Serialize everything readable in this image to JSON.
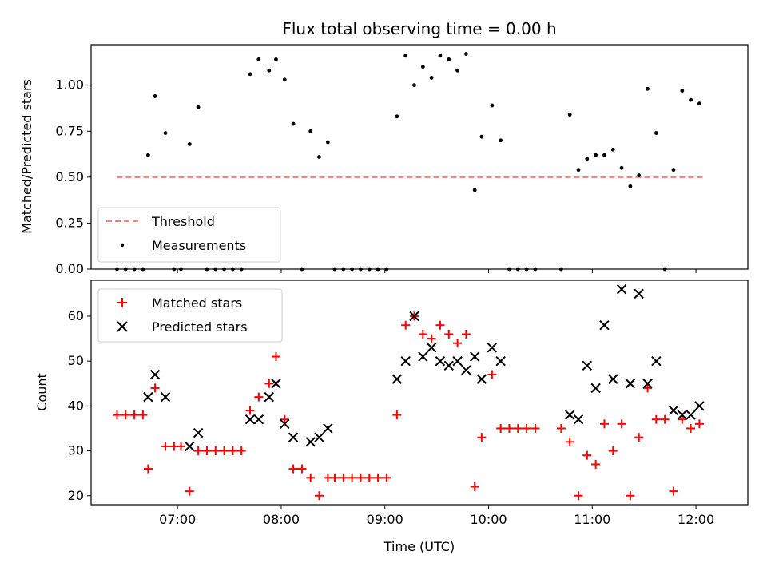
{
  "chart_data": [
    {
      "type": "scatter",
      "title": "Flux total observing time = 0.00 h",
      "xlabel": "",
      "ylabel": "Matched/Predicted stars",
      "x_ticks": [
        "07:00",
        "08:00",
        "09:00",
        "10:00",
        "11:00",
        "12:00"
      ],
      "x_tick_labels_visible": false,
      "xlim": [
        "06:10",
        "12:30"
      ],
      "ylim": [
        0,
        1.22
      ],
      "y_ticks": [
        "0.00",
        "0.25",
        "0.50",
        "0.75",
        "1.00"
      ],
      "legend": {
        "placement": "lower-left",
        "entries": [
          "Threshold",
          "Measurements"
        ]
      },
      "threshold": {
        "name": "Threshold",
        "value": 0.5,
        "x_range": [
          "06:25",
          "12:05"
        ],
        "color": "#f08080",
        "style": "dashed"
      },
      "series": [
        {
          "name": "Measurements",
          "marker": "dot",
          "color": "#000000",
          "points": [
            [
              "06:25",
              0.0
            ],
            [
              "06:30",
              0.0
            ],
            [
              "06:35",
              0.0
            ],
            [
              "06:40",
              0.0
            ],
            [
              "06:43",
              0.62
            ],
            [
              "06:47",
              0.94
            ],
            [
              "06:53",
              0.74
            ],
            [
              "06:58",
              0.0
            ],
            [
              "07:02",
              0.0
            ],
            [
              "07:07",
              0.68
            ],
            [
              "07:12",
              0.88
            ],
            [
              "07:17",
              0.0
            ],
            [
              "07:22",
              0.0
            ],
            [
              "07:27",
              0.0
            ],
            [
              "07:32",
              0.0
            ],
            [
              "07:37",
              0.0
            ],
            [
              "07:42",
              1.06
            ],
            [
              "07:47",
              1.14
            ],
            [
              "07:53",
              1.08
            ],
            [
              "07:57",
              1.14
            ],
            [
              "08:02",
              1.03
            ],
            [
              "08:07",
              0.79
            ],
            [
              "08:12",
              0.0
            ],
            [
              "08:17",
              0.75
            ],
            [
              "08:22",
              0.61
            ],
            [
              "08:27",
              0.69
            ],
            [
              "08:31",
              0.0
            ],
            [
              "08:36",
              0.0
            ],
            [
              "08:41",
              0.0
            ],
            [
              "08:46",
              0.0
            ],
            [
              "08:51",
              0.0
            ],
            [
              "08:56",
              0.0
            ],
            [
              "09:01",
              0.0
            ],
            [
              "09:07",
              0.83
            ],
            [
              "09:12",
              1.16
            ],
            [
              "09:17",
              1.0
            ],
            [
              "09:22",
              1.1
            ],
            [
              "09:27",
              1.04
            ],
            [
              "09:32",
              1.16
            ],
            [
              "09:37",
              1.14
            ],
            [
              "09:42",
              1.08
            ],
            [
              "09:47",
              1.17
            ],
            [
              "09:52",
              0.43
            ],
            [
              "09:56",
              0.72
            ],
            [
              "10:02",
              0.89
            ],
            [
              "10:07",
              0.7
            ],
            [
              "10:12",
              0.0
            ],
            [
              "10:17",
              0.0
            ],
            [
              "10:22",
              0.0
            ],
            [
              "10:27",
              0.0
            ],
            [
              "10:42",
              0.0
            ],
            [
              "10:47",
              0.84
            ],
            [
              "10:52",
              0.54
            ],
            [
              "10:57",
              0.6
            ],
            [
              "11:02",
              0.62
            ],
            [
              "11:07",
              0.62
            ],
            [
              "11:12",
              0.65
            ],
            [
              "11:17",
              0.55
            ],
            [
              "11:22",
              0.45
            ],
            [
              "11:27",
              0.51
            ],
            [
              "11:32",
              0.98
            ],
            [
              "11:37",
              0.74
            ],
            [
              "11:42",
              0.0
            ],
            [
              "11:47",
              0.54
            ],
            [
              "11:52",
              0.97
            ],
            [
              "11:57",
              0.92
            ],
            [
              "12:02",
              0.9
            ]
          ]
        }
      ]
    },
    {
      "type": "scatter",
      "title": "",
      "xlabel": "Time (UTC)",
      "ylabel": "Count",
      "x_ticks": [
        "07:00",
        "08:00",
        "09:00",
        "10:00",
        "11:00",
        "12:00"
      ],
      "xlim": [
        "06:10",
        "12:30"
      ],
      "ylim": [
        18,
        68
      ],
      "y_ticks": [
        "20",
        "30",
        "40",
        "50",
        "60"
      ],
      "legend": {
        "placement": "upper-left",
        "entries": [
          "Matched stars",
          "Predicted stars"
        ]
      },
      "series": [
        {
          "name": "Matched stars",
          "marker": "plus",
          "color": "#ff0000",
          "points": [
            [
              "06:25",
              38
            ],
            [
              "06:30",
              38
            ],
            [
              "06:35",
              38
            ],
            [
              "06:40",
              38
            ],
            [
              "06:43",
              26
            ],
            [
              "06:47",
              44
            ],
            [
              "06:53",
              31
            ],
            [
              "06:58",
              31
            ],
            [
              "07:02",
              31
            ],
            [
              "07:07",
              21
            ],
            [
              "07:12",
              30
            ],
            [
              "07:17",
              30
            ],
            [
              "07:22",
              30
            ],
            [
              "07:27",
              30
            ],
            [
              "07:32",
              30
            ],
            [
              "07:37",
              30
            ],
            [
              "07:42",
              39
            ],
            [
              "07:47",
              42
            ],
            [
              "07:53",
              45
            ],
            [
              "07:57",
              51
            ],
            [
              "08:02",
              37
            ],
            [
              "08:07",
              26
            ],
            [
              "08:12",
              26
            ],
            [
              "08:17",
              24
            ],
            [
              "08:22",
              20
            ],
            [
              "08:27",
              24
            ],
            [
              "08:31",
              24
            ],
            [
              "08:36",
              24
            ],
            [
              "08:41",
              24
            ],
            [
              "08:46",
              24
            ],
            [
              "08:51",
              24
            ],
            [
              "08:56",
              24
            ],
            [
              "09:01",
              24
            ],
            [
              "09:07",
              38
            ],
            [
              "09:12",
              58
            ],
            [
              "09:17",
              60
            ],
            [
              "09:22",
              56
            ],
            [
              "09:27",
              55
            ],
            [
              "09:32",
              58
            ],
            [
              "09:37",
              56
            ],
            [
              "09:42",
              54
            ],
            [
              "09:47",
              56
            ],
            [
              "09:52",
              22
            ],
            [
              "09:56",
              33
            ],
            [
              "10:02",
              47
            ],
            [
              "10:07",
              35
            ],
            [
              "10:12",
              35
            ],
            [
              "10:17",
              35
            ],
            [
              "10:22",
              35
            ],
            [
              "10:27",
              35
            ],
            [
              "10:42",
              35
            ],
            [
              "10:47",
              32
            ],
            [
              "10:52",
              20
            ],
            [
              "10:57",
              29
            ],
            [
              "11:02",
              27
            ],
            [
              "11:07",
              36
            ],
            [
              "11:12",
              30
            ],
            [
              "11:17",
              36
            ],
            [
              "11:22",
              20
            ],
            [
              "11:27",
              33
            ],
            [
              "11:32",
              44
            ],
            [
              "11:37",
              37
            ],
            [
              "11:42",
              37
            ],
            [
              "11:47",
              21
            ],
            [
              "11:52",
              37
            ],
            [
              "11:57",
              35
            ],
            [
              "12:02",
              36
            ]
          ]
        },
        {
          "name": "Predicted stars",
          "marker": "x",
          "color": "#000000",
          "points": [
            [
              "06:43",
              42
            ],
            [
              "06:47",
              47
            ],
            [
              "06:53",
              42
            ],
            [
              "07:07",
              31
            ],
            [
              "07:12",
              34
            ],
            [
              "07:42",
              37
            ],
            [
              "07:47",
              37
            ],
            [
              "07:53",
              42
            ],
            [
              "07:57",
              45
            ],
            [
              "08:02",
              36
            ],
            [
              "08:07",
              33
            ],
            [
              "08:17",
              32
            ],
            [
              "08:22",
              33
            ],
            [
              "08:27",
              35
            ],
            [
              "09:07",
              46
            ],
            [
              "09:12",
              50
            ],
            [
              "09:17",
              60
            ],
            [
              "09:22",
              51
            ],
            [
              "09:27",
              53
            ],
            [
              "09:32",
              50
            ],
            [
              "09:37",
              49
            ],
            [
              "09:42",
              50
            ],
            [
              "09:47",
              48
            ],
            [
              "09:52",
              51
            ],
            [
              "09:56",
              46
            ],
            [
              "10:02",
              53
            ],
            [
              "10:07",
              50
            ],
            [
              "10:47",
              38
            ],
            [
              "10:52",
              37
            ],
            [
              "10:57",
              49
            ],
            [
              "11:02",
              44
            ],
            [
              "11:07",
              58
            ],
            [
              "11:12",
              46
            ],
            [
              "11:17",
              66
            ],
            [
              "11:22",
              45
            ],
            [
              "11:27",
              65
            ],
            [
              "11:32",
              45
            ],
            [
              "11:37",
              50
            ],
            [
              "11:47",
              39
            ],
            [
              "11:52",
              38
            ],
            [
              "11:57",
              38
            ],
            [
              "12:02",
              40
            ]
          ]
        }
      ]
    }
  ]
}
